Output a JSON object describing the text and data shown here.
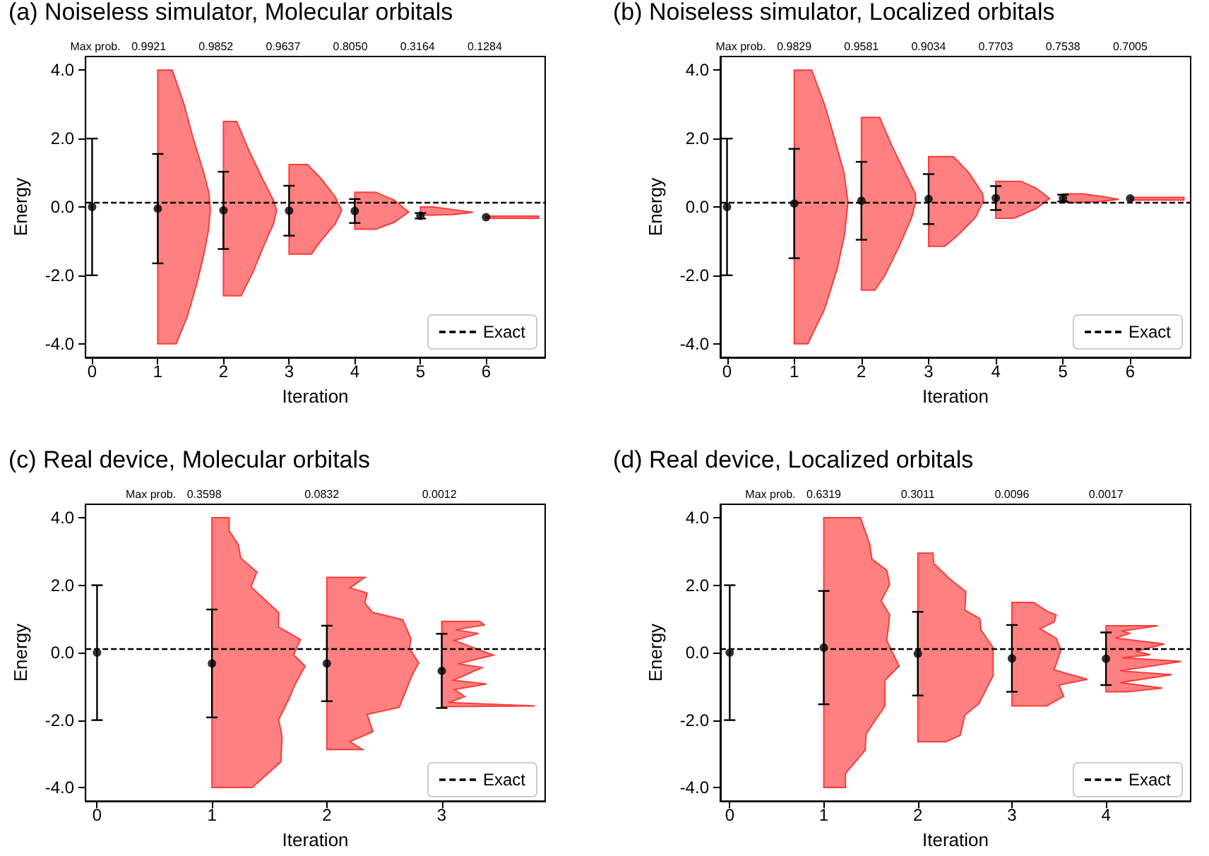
{
  "chart_data": [
    {
      "type": "scatter",
      "title": "(a) Noiseless simulator, Molecular orbitals",
      "xlabel": "Iteration",
      "ylabel": "Energy",
      "xlim": [
        -0.1,
        6.9
      ],
      "xticks": [
        0,
        1,
        2,
        3,
        4,
        5,
        6
      ],
      "ylim": [
        -4.4,
        4.4
      ],
      "yticks": [
        {
          "value": -4,
          "label": "-4.0"
        },
        {
          "value": -2,
          "label": "-2.0"
        },
        {
          "value": 0,
          "label": "0.0"
        },
        {
          "value": 2,
          "label": "2.0"
        },
        {
          "value": 4,
          "label": "4.0"
        }
      ],
      "grid": false,
      "legend": "bottom right",
      "ref_lines": [
        {
          "axis": "y",
          "value": 0.12,
          "label": "Exact",
          "color": "#000000",
          "line_style": "dashed"
        }
      ],
      "annotations": [
        "Max prob.",
        "0.9921",
        "0.9852",
        "0.9637",
        "0.8050",
        "0.3164",
        "0.1284"
      ],
      "series": [
        {
          "type": "area",
          "color": "#ff8080",
          "x": [
            1,
            1.22,
            1.4,
            1.54,
            1.7,
            1.78,
            1.8,
            1.77,
            1.7,
            1.6,
            1.45,
            1.28,
            1
          ],
          "values": [
            4,
            4,
            3,
            2,
            1,
            0.4,
            -0.1,
            -0.7,
            -1.4,
            -2.2,
            -3.2,
            -4,
            -4
          ]
        },
        {
          "type": "area",
          "color": "#ff8080",
          "x": [
            2,
            2.2,
            2.4,
            2.6,
            2.76,
            2.81,
            2.76,
            2.6,
            2.45,
            2.27,
            2
          ],
          "values": [
            2.5,
            2.5,
            1.6,
            0.8,
            0.2,
            -0.1,
            -0.5,
            -1.2,
            -1.9,
            -2.6,
            -2.6
          ]
        },
        {
          "type": "area",
          "color": "#ff8080",
          "x": [
            3,
            3.28,
            3.5,
            3.7,
            3.8,
            3.7,
            3.5,
            3.34,
            3
          ],
          "values": [
            1.24,
            1.24,
            0.8,
            0.3,
            -0.1,
            -0.5,
            -0.95,
            -1.38,
            -1.38
          ]
        },
        {
          "type": "area",
          "color": "#ff8080",
          "x": [
            4,
            4.32,
            4.6,
            4.82,
            4.6,
            4.32,
            4
          ],
          "values": [
            0.43,
            0.43,
            0.2,
            -0.15,
            -0.45,
            -0.65,
            -0.65
          ]
        },
        {
          "type": "area",
          "color": "#ff8080",
          "x": [
            5,
            5.2,
            5.5,
            5.8,
            5.5,
            5.2,
            5
          ],
          "values": [
            0,
            0,
            -0.08,
            -0.16,
            -0.22,
            -0.24,
            -0.24
          ]
        },
        {
          "type": "area",
          "color": "#ff8080",
          "x": [
            6,
            6.8,
            6.8,
            6
          ],
          "values": [
            -0.27,
            -0.27,
            -0.33,
            -0.33
          ]
        },
        {
          "color": "#000000",
          "marker": "circle",
          "x": [
            0,
            1,
            2,
            3,
            4,
            5,
            6
          ],
          "values": [
            0,
            -0.05,
            -0.1,
            -0.11,
            -0.12,
            -0.26,
            -0.3
          ],
          "errors": [
            2,
            1.6,
            1.13,
            0.73,
            0.35,
            0.08,
            null
          ]
        }
      ]
    },
    {
      "type": "scatter",
      "title": "(b) Noiseless simulator, Localized orbitals",
      "xlabel": "Iteration",
      "ylabel": "Energy",
      "xlim": [
        -0.1,
        6.9
      ],
      "xticks": [
        0,
        1,
        2,
        3,
        4,
        5,
        6
      ],
      "ylim": [
        -4.4,
        4.4
      ],
      "yticks": [
        {
          "value": -4,
          "label": "-4.0"
        },
        {
          "value": -2,
          "label": "-2.0"
        },
        {
          "value": 0,
          "label": "0.0"
        },
        {
          "value": 2,
          "label": "2.0"
        },
        {
          "value": 4,
          "label": "4.0"
        }
      ],
      "grid": false,
      "legend": "bottom right",
      "ref_lines": [
        {
          "axis": "y",
          "value": 0.12,
          "label": "Exact",
          "color": "#000000",
          "line_style": "dashed"
        }
      ],
      "annotations": [
        "Max prob.",
        "0.9829",
        "0.9581",
        "0.9034",
        "0.7703",
        "0.7538",
        "0.7005"
      ],
      "series": [
        {
          "type": "area",
          "color": "#ff8080",
          "x": [
            1,
            1.26,
            1.45,
            1.6,
            1.74,
            1.8,
            1.75,
            1.64,
            1.45,
            1.2,
            1
          ],
          "values": [
            4,
            4,
            3,
            2,
            1,
            0.15,
            -0.8,
            -1.8,
            -3,
            -4,
            -4
          ]
        },
        {
          "type": "area",
          "color": "#ff8080",
          "x": [
            2,
            2.27,
            2.45,
            2.65,
            2.8,
            2.81,
            2.75,
            2.55,
            2.35,
            2.2,
            2
          ],
          "values": [
            2.62,
            2.62,
            1.8,
            1,
            0.4,
            0.2,
            -0.3,
            -1.2,
            -2,
            -2.43,
            -2.43
          ]
        },
        {
          "type": "area",
          "color": "#ff8080",
          "x": [
            3,
            3.37,
            3.6,
            3.8,
            3.82,
            3.7,
            3.45,
            3.24,
            3
          ],
          "values": [
            1.47,
            1.47,
            1,
            0.4,
            0.2,
            -0.3,
            -0.8,
            -1.15,
            -1.15
          ]
        },
        {
          "type": "area",
          "color": "#ff8080",
          "x": [
            4,
            4.37,
            4.6,
            4.8,
            4.6,
            4.27,
            4
          ],
          "values": [
            0.75,
            0.75,
            0.55,
            0.25,
            -0.05,
            -0.33,
            -0.33
          ]
        },
        {
          "type": "area",
          "color": "#ff8080",
          "x": [
            5,
            5.3,
            5.6,
            5.83,
            5.5,
            5.2,
            5
          ],
          "values": [
            0.38,
            0.38,
            0.3,
            0.22,
            0.15,
            0.13,
            0.13
          ]
        },
        {
          "type": "area",
          "color": "#ff8080",
          "x": [
            6,
            6.8,
            6.8,
            6
          ],
          "values": [
            0.28,
            0.28,
            0.2,
            0.2
          ]
        },
        {
          "color": "#000000",
          "marker": "circle",
          "x": [
            0,
            1,
            2,
            3,
            4,
            5,
            6
          ],
          "values": [
            0,
            0.1,
            0.18,
            0.23,
            0.26,
            0.26,
            0.25
          ],
          "errors": [
            2,
            1.6,
            1.14,
            0.73,
            0.35,
            0.1,
            null
          ]
        }
      ]
    },
    {
      "type": "scatter",
      "title": "(c) Real device, Molecular orbitals",
      "xlabel": "Iteration",
      "ylabel": "Energy",
      "xlim": [
        -0.1,
        3.9
      ],
      "xticks": [
        0,
        1,
        2,
        3
      ],
      "ylim": [
        -4.4,
        4.4
      ],
      "yticks": [
        {
          "value": -4,
          "label": "-4.0"
        },
        {
          "value": -2,
          "label": "-2.0"
        },
        {
          "value": 0,
          "label": "0.0"
        },
        {
          "value": 2,
          "label": "2.0"
        },
        {
          "value": 4,
          "label": "4.0"
        }
      ],
      "grid": false,
      "legend": "bottom right",
      "ref_lines": [
        {
          "axis": "y",
          "value": 0.12,
          "label": "Exact",
          "color": "#000000",
          "line_style": "dashed"
        }
      ],
      "annotations": [
        "Max prob.",
        "0.3598",
        "0.0832",
        "0.0012"
      ],
      "series": [
        {
          "type": "area",
          "color": "#ff8080",
          "x": [
            1,
            1.15,
            1.15,
            1.23,
            1.25,
            1.39,
            1.34,
            1.58,
            1.58,
            1.77,
            1.71,
            1.81,
            1.72,
            1.67,
            1.58,
            1.61,
            1.6,
            1.35,
            1
          ],
          "values": [
            4,
            4,
            3.61,
            3.2,
            2.81,
            2.39,
            1.95,
            1.19,
            0.76,
            0.39,
            -0.06,
            -0.4,
            -0.96,
            -1.37,
            -1.99,
            -2.48,
            -3.24,
            -4,
            -4
          ]
        },
        {
          "type": "area",
          "color": "#ff8080",
          "x": [
            2,
            2.33,
            2.2,
            2.35,
            2.33,
            2.4,
            2.66,
            2.73,
            2.72,
            2.8,
            2.74,
            2.63,
            2.35,
            2.4,
            2.2,
            2.31,
            2
          ],
          "values": [
            2.23,
            2.23,
            1.92,
            1.77,
            1.47,
            1.19,
            0.98,
            0.43,
            0.12,
            -0.3,
            -0.68,
            -1.62,
            -1.83,
            -2.34,
            -2.64,
            -2.87,
            -2.87
          ]
        },
        {
          "type": "area",
          "color": "#ff8080",
          "x": [
            3,
            3.33,
            3.37,
            3.12,
            3.32,
            3.11,
            3.45,
            3.14,
            3.35,
            3.1,
            3.39,
            3.11,
            3.2,
            3.06,
            3.81,
            3
          ],
          "values": [
            0.93,
            0.93,
            0.82,
            0.68,
            0.57,
            0.36,
            -0.07,
            -0.33,
            -0.44,
            -0.82,
            -0.93,
            -1.09,
            -1.3,
            -1.48,
            -1.58,
            -1.6
          ]
        },
        {
          "color": "#000000",
          "marker": "circle",
          "x": [
            0,
            1,
            2,
            3
          ],
          "values": [
            0,
            -0.32,
            -0.32,
            -0.54
          ],
          "errors": [
            2,
            1.6,
            1.12,
            1.1
          ]
        }
      ]
    },
    {
      "type": "scatter",
      "title": "(d) Real device, Localized orbitals",
      "xlabel": "Iteration",
      "ylabel": "Energy",
      "xlim": [
        -0.1,
        4.9
      ],
      "xticks": [
        0,
        1,
        2,
        3,
        4
      ],
      "ylim": [
        -4.4,
        4.4
      ],
      "yticks": [
        {
          "value": -4,
          "label": "-4.0"
        },
        {
          "value": -2,
          "label": "-2.0"
        },
        {
          "value": 0,
          "label": "0.0"
        },
        {
          "value": 2,
          "label": "2.0"
        },
        {
          "value": 4,
          "label": "4.0"
        }
      ],
      "grid": false,
      "legend": "bottom right",
      "ref_lines": [
        {
          "axis": "y",
          "value": 0.12,
          "label": "Exact",
          "color": "#000000",
          "line_style": "dashed"
        }
      ],
      "annotations": [
        "Max prob.",
        "0.6319",
        "0.3011",
        "0.0096",
        "0.0017"
      ],
      "series": [
        {
          "type": "area",
          "color": "#ff8080",
          "x": [
            1,
            1.39,
            1.49,
            1.51,
            1.67,
            1.7,
            1.61,
            1.7,
            1.67,
            1.8,
            1.65,
            1.65,
            1.45,
            1.44,
            1.23,
            1.23,
            1
          ],
          "values": [
            4,
            4,
            3.2,
            2.78,
            2.44,
            2.02,
            1.54,
            1.12,
            0.36,
            -0.4,
            -0.82,
            -1.58,
            -2.41,
            -2.89,
            -3.58,
            -4,
            -4
          ]
        },
        {
          "type": "area",
          "color": "#ff8080",
          "x": [
            2,
            2.16,
            2.17,
            2.35,
            2.51,
            2.5,
            2.66,
            2.67,
            2.8,
            2.8,
            2.65,
            2.5,
            2.45,
            2.3,
            2
          ],
          "values": [
            2.95,
            2.95,
            2.64,
            2.16,
            1.81,
            1.26,
            1.01,
            0.68,
            0.15,
            -0.68,
            -1.51,
            -1.85,
            -2.45,
            -2.64,
            -2.64
          ]
        },
        {
          "type": "area",
          "color": "#ff8080",
          "x": [
            3,
            3.23,
            3.38,
            3.47,
            3.45,
            3.3,
            3.47,
            3.52,
            3.45,
            3.8,
            3.5,
            3.55,
            3.37,
            3
          ],
          "values": [
            1.49,
            1.49,
            1.22,
            1.12,
            0.91,
            0.71,
            0.43,
            0.08,
            -0.51,
            -0.79,
            -0.96,
            -1.3,
            -1.58,
            -1.58
          ]
        },
        {
          "type": "area",
          "color": "#ff8080",
          "x": [
            4,
            4.55,
            4.17,
            4.25,
            4.1,
            4.62,
            4.32,
            4.47,
            4.17,
            4.8,
            4.15,
            4.7,
            4.15,
            4.6,
            4.22,
            4
          ],
          "values": [
            0.8,
            0.8,
            0.64,
            0.57,
            0.43,
            0.26,
            0.04,
            -0.06,
            -0.15,
            -0.26,
            -0.54,
            -0.65,
            -0.89,
            -1.05,
            -1.16,
            -1.16
          ]
        },
        {
          "color": "#000000",
          "marker": "circle",
          "x": [
            0,
            1,
            2,
            3,
            4
          ],
          "values": [
            0,
            0.15,
            -0.03,
            -0.17,
            -0.18
          ],
          "errors": [
            2,
            1.68,
            1.24,
            0.99,
            0.78
          ]
        }
      ]
    }
  ]
}
